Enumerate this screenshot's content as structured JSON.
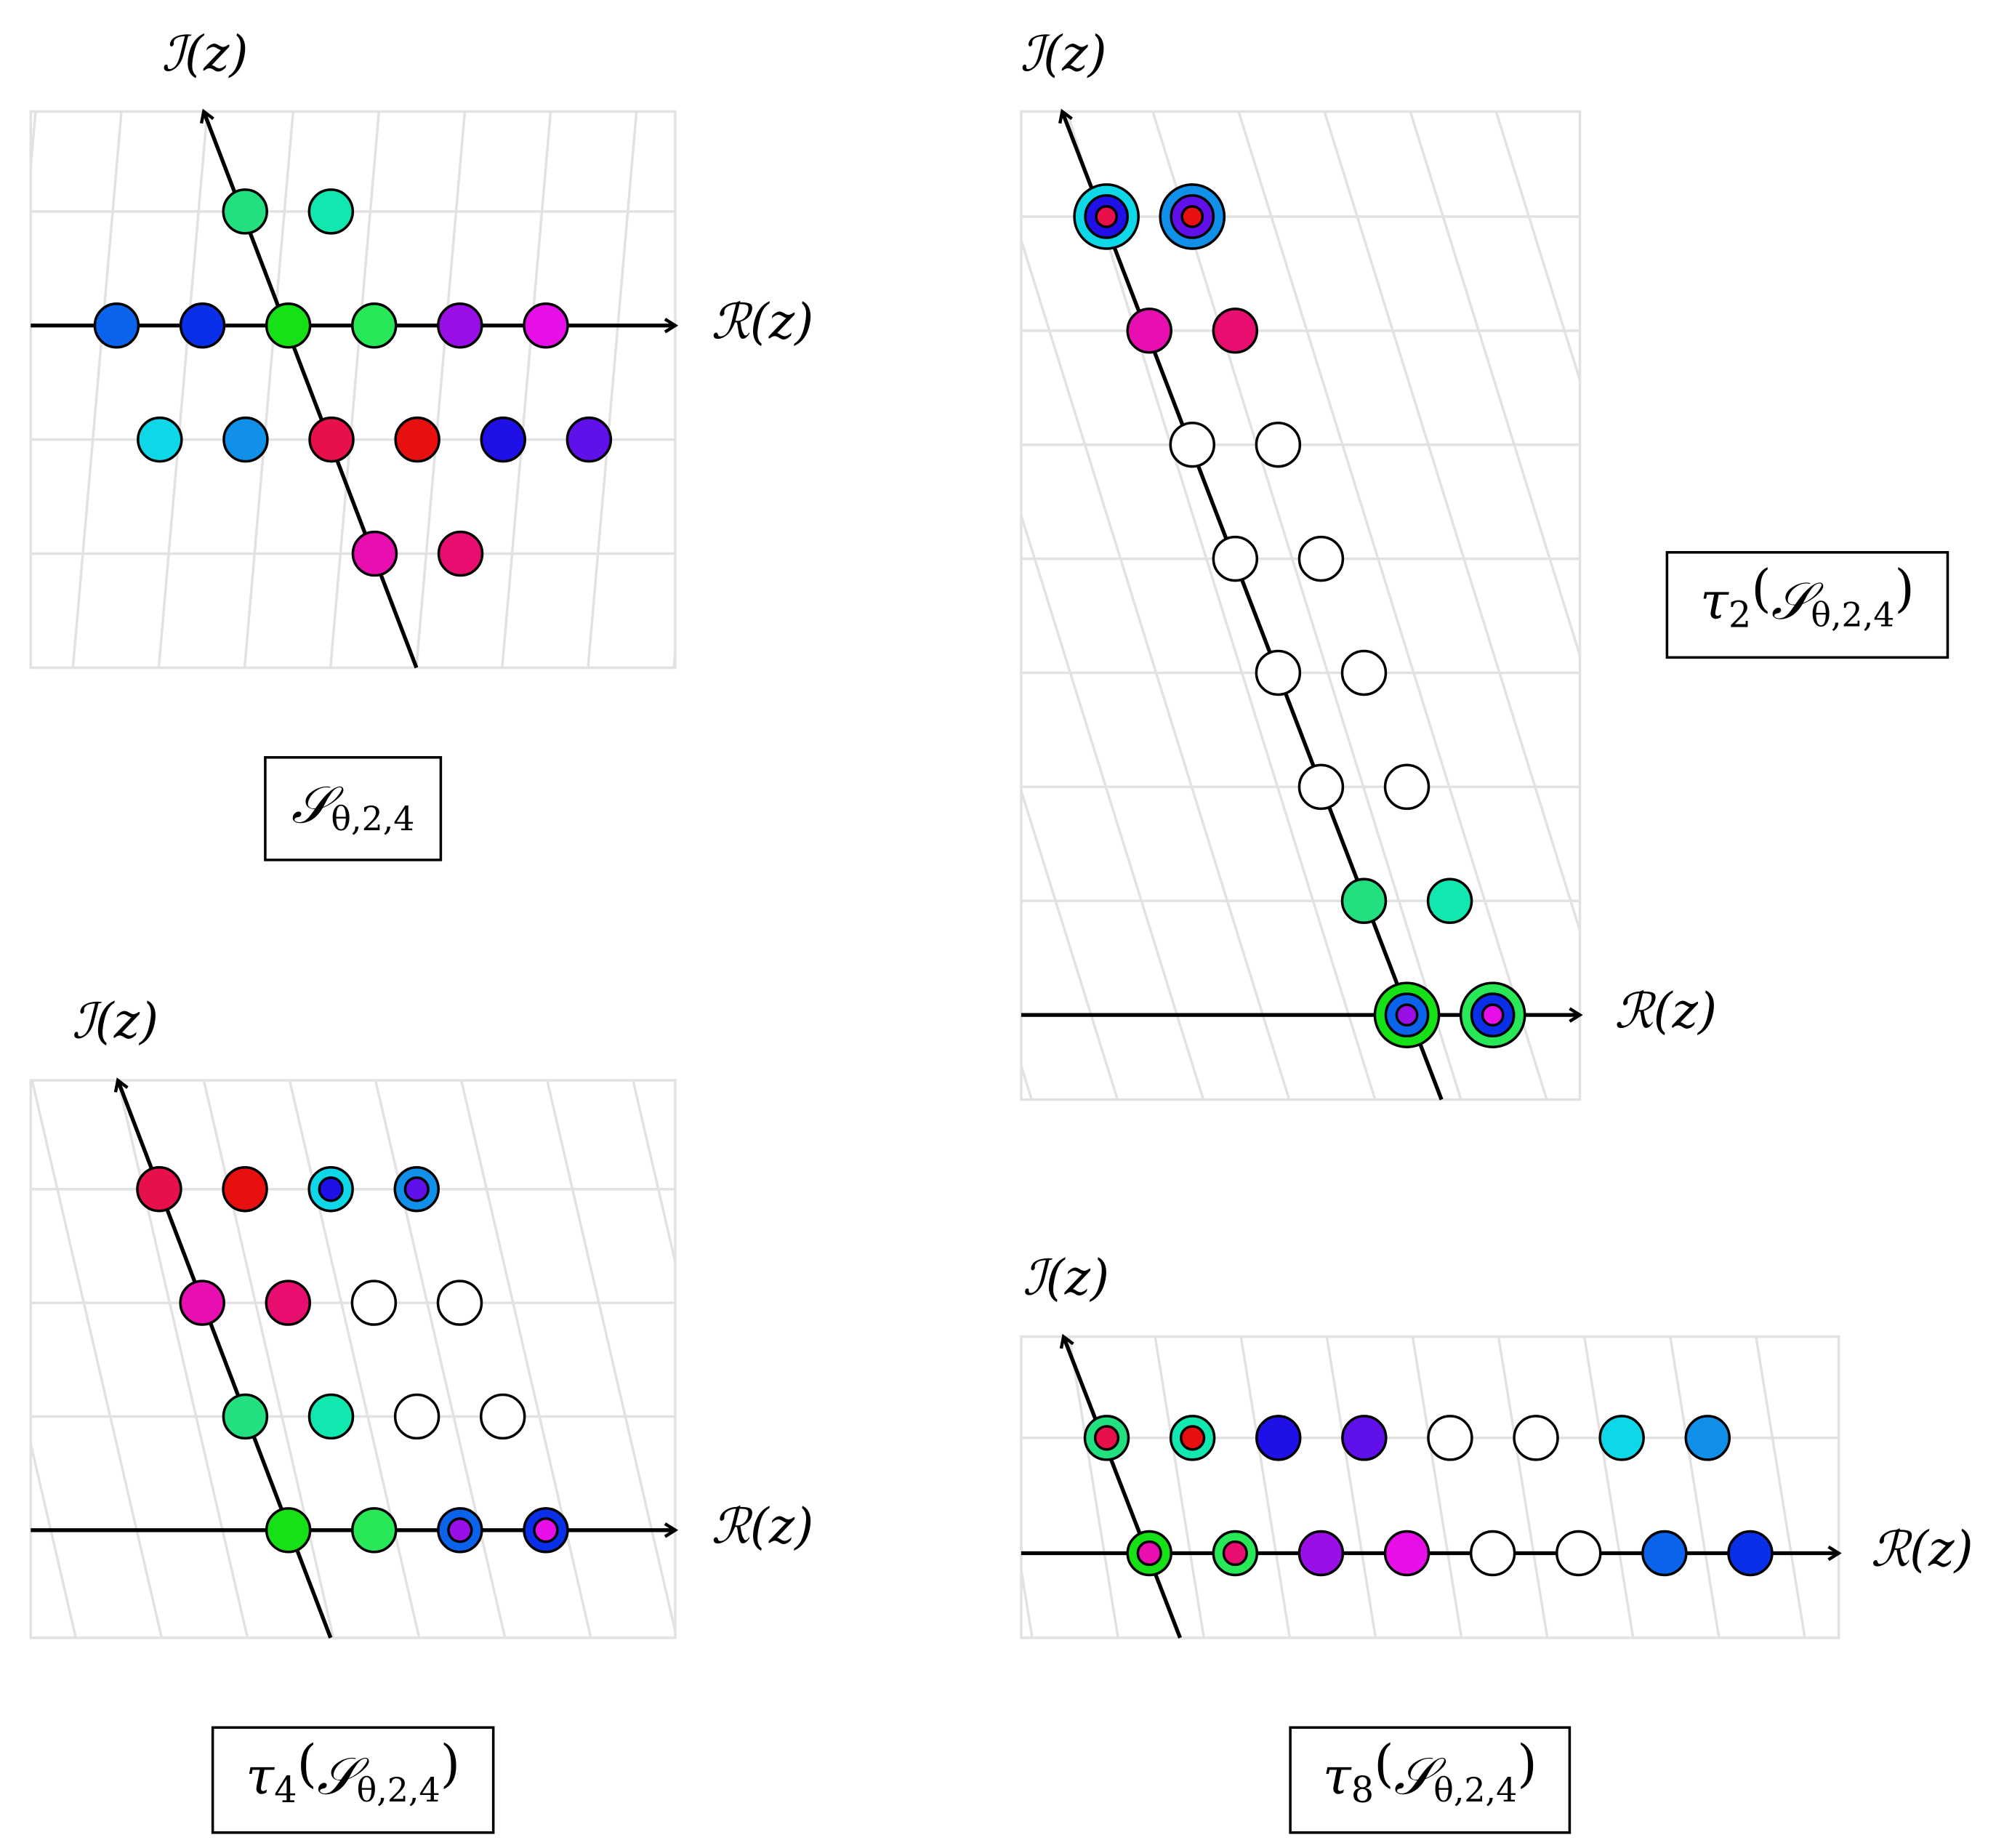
{
  "panels": [
    {
      "imag_label": "ℐ(z)",
      "real_label": "ℛ(z)",
      "caption": {
        "set": "𝒮",
        "set_index": "θ,2,4"
      }
    },
    {
      "imag_label": "ℐ(z)",
      "real_label": "ℛ(z)",
      "caption": {
        "operator": "τ",
        "operator_index": "2",
        "open": "(",
        "set": "𝒮",
        "set_index": "θ,2,4",
        "close": ")"
      }
    },
    {
      "imag_label": "ℐ(z)",
      "real_label": "ℛ(z)",
      "caption": {
        "operator": "τ",
        "operator_index": "4",
        "open": "(",
        "set": "𝒮",
        "set_index": "θ,2,4",
        "close": ")"
      }
    },
    {
      "imag_label": "ℐ(z)",
      "real_label": "ℛ(z)",
      "caption": {
        "operator": "τ",
        "operator_index": "8",
        "open": "(",
        "set": "𝒮",
        "set_index": "θ,2,4",
        "close": ")"
      }
    }
  ]
}
